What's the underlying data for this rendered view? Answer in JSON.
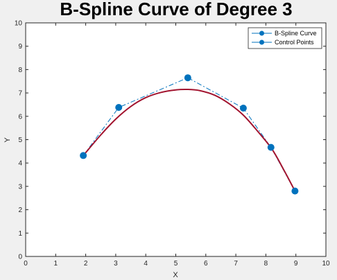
{
  "chart_data": {
    "type": "line",
    "title": "B-Spline Curve of Degree 3",
    "xlabel": "X",
    "ylabel": "Y",
    "xlim": [
      0,
      10
    ],
    "ylim": [
      0,
      10
    ],
    "xticks": [
      0,
      1,
      2,
      3,
      4,
      5,
      6,
      7,
      8,
      9,
      10
    ],
    "yticks": [
      0,
      1,
      2,
      3,
      4,
      5,
      6,
      7,
      8,
      9,
      10
    ],
    "grid": false,
    "legend_position": "top-right",
    "series": [
      {
        "name": "B-Spline Curve",
        "style": "solid",
        "color": "#a2142f",
        "x": [
          1.92,
          2.5,
          3.0,
          3.5,
          4.0,
          4.5,
          5.0,
          5.4,
          5.8,
          6.3,
          6.8,
          7.25,
          7.7,
          8.2,
          8.6,
          8.97
        ],
        "y": [
          4.32,
          5.2,
          5.88,
          6.42,
          6.8,
          7.02,
          7.13,
          7.15,
          7.1,
          6.9,
          6.52,
          6.05,
          5.4,
          4.6,
          3.7,
          2.8
        ]
      },
      {
        "name": "Control Points",
        "style": "dash-dot",
        "color": "#0072bd",
        "x": [
          1.92,
          3.1,
          5.4,
          7.25,
          8.17,
          8.97
        ],
        "y": [
          4.32,
          6.38,
          7.65,
          6.35,
          4.67,
          2.8
        ]
      }
    ]
  },
  "colors": {
    "axes_background": "#ffffff",
    "figure_background": "#f0f0f0",
    "curve": "#a2142f",
    "control": "#0072bd"
  }
}
